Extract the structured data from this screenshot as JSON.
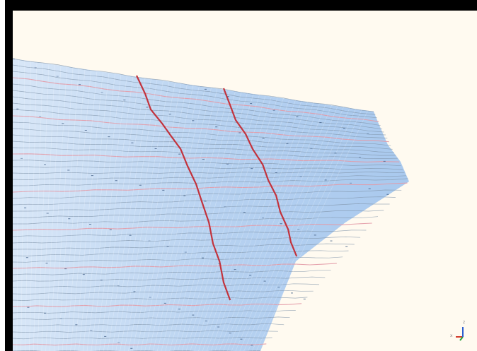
{
  "window": {
    "frame_color": "#000000",
    "viewport_background": "#fffaf0"
  },
  "scene": {
    "mesh_fill_color": "#a9c9ee",
    "mesh_line_color": "#7f93a8",
    "seam_color": "#c2333d",
    "pink_line_color": "#e39aa6"
  },
  "axis_triad": {
    "icon": "axis-triad-icon",
    "z_label": "z",
    "x_label": "x",
    "x_color": "#d23a2a",
    "y_color": "#2aa03a",
    "z_color": "#2e5fd0"
  }
}
